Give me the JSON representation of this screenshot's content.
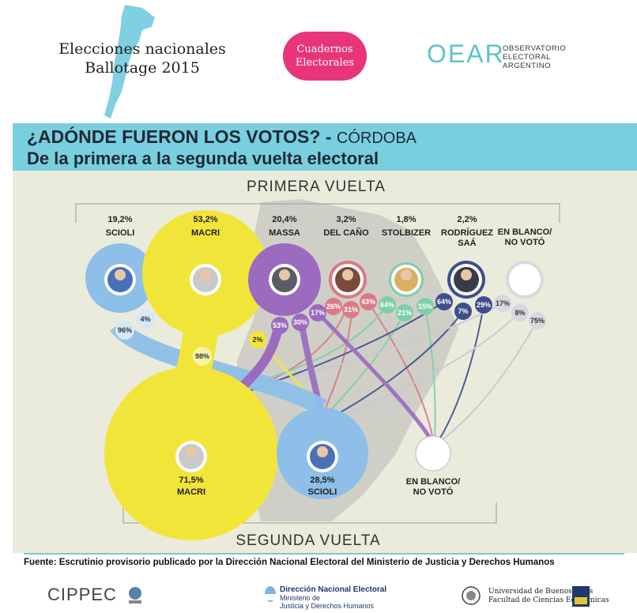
{
  "header": {
    "title_line1": "Elecciones nacionales",
    "title_line2": "Ballotage 2015",
    "pill_line1": "Cuadernos",
    "pill_line2": "Electorales",
    "oear_logo": "OEAR",
    "oear_line1": "OBSERVATORIO",
    "oear_line2": "ELECTORAL",
    "oear_line3": "ARGENTINO"
  },
  "band": {
    "line1": "¿ADÓNDE FUERON LOS VOTOS? -",
    "line1_place": "CÓRDOBA",
    "line2": "De la primera a la segunda vuelta electoral"
  },
  "chart_data": {
    "type": "diagram",
    "title_top": "PRIMERA VUELTA",
    "title_bottom": "SEGUNDA VUELTA",
    "first_round": [
      {
        "pct": "19,2%",
        "name": "SCIOLI",
        "color": "#8dbfe8"
      },
      {
        "pct": "53,2%",
        "name": "MACRI",
        "color": "#f2e53a"
      },
      {
        "pct": "20,4%",
        "name": "MASSA",
        "color": "#9a6bbf"
      },
      {
        "pct": "3,2%",
        "name": "DEL CAÑO",
        "color": "#d97a84"
      },
      {
        "pct": "1,8%",
        "name": "STOLBIZER",
        "color": "#7fcfa6"
      },
      {
        "pct": "2,2%",
        "name": "RODRÍGUEZ SAÁ",
        "color": "#3e4e8c"
      },
      {
        "pct": "",
        "name": "EN BLANCO/ NO VOTÓ",
        "color": "#d0d0d8"
      }
    ],
    "second_round": [
      {
        "pct": "71,5%",
        "name": "MACRI",
        "color": "#f2e53a"
      },
      {
        "pct": "28,5%",
        "name": "SCIOLI",
        "color": "#8dbfe8"
      },
      {
        "pct": "",
        "name": "EN BLANCO/ NO VOTÓ",
        "color": "#ffffff"
      }
    ],
    "transfer_labels": {
      "scioli": [
        "96%",
        "4%"
      ],
      "macri": [
        "98%",
        "2%"
      ],
      "massa": [
        "53%",
        "30%",
        "17%"
      ],
      "delcano": [
        "26%",
        "31%",
        "43%"
      ],
      "stolbizer": [
        "64%",
        "21%",
        "15%"
      ],
      "rodriguez": [
        "64%",
        "7%",
        "29%"
      ],
      "blanco": [
        "17%",
        "8%",
        "75%"
      ]
    }
  },
  "footer": {
    "source": "Fuente: Escrutinio provisorio publicado por la Dirección Nacional Electoral del Ministerio de Justicia y Derechos Humanos",
    "cippec": "CIPPEC",
    "dne_line1": "Dirección Nacional Electoral",
    "dne_line2": "Ministerio de",
    "dne_line3": "Justicia y Derechos Humanos",
    "uba_line1": "Universidad de Buenos Aires",
    "uba_line2": "Facultad de Ciencias Económicas"
  }
}
